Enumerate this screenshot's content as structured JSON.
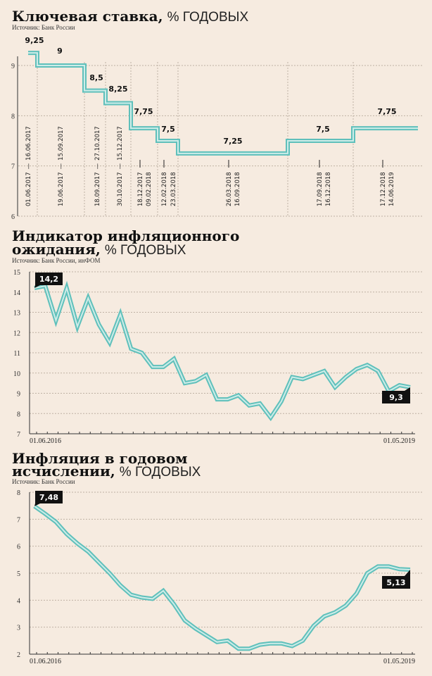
{
  "colors": {
    "background": "#f6ebe0",
    "line_outer": "#5fc0bb",
    "line_inner": "#cdece8",
    "label_box": "#111111"
  },
  "chart_data": [
    {
      "type": "line",
      "step": true,
      "title_bold": "Ключевая ставка,",
      "title_unit": "% ГОДОВЫХ",
      "source": "Источник: Банк России",
      "ylim": [
        6,
        9.5
      ],
      "yticks": [
        "9",
        "8",
        "7",
        "6"
      ],
      "grid": true,
      "periods": [
        {
          "start": "01.06.2017",
          "end": "16.06.2017",
          "value": 9.25,
          "label": "9,25"
        },
        {
          "start": "19.06.2017",
          "end": "15.09.2017",
          "value": 9.0,
          "label": "9"
        },
        {
          "start": "18.09.2017",
          "end": "27.10.2017",
          "value": 8.5,
          "label": "8,5"
        },
        {
          "start": "30.10.2017",
          "end": "15.12.2017",
          "value": 8.25,
          "label": "8,25"
        },
        {
          "start": "18.12.2017",
          "end": "09.02.2018",
          "value": 7.75,
          "label": "7,75"
        },
        {
          "start": "12.02.2018",
          "end": "23.03.2018",
          "value": 7.5,
          "label": "7,5"
        },
        {
          "start": "26.03.2018",
          "end": "16.09.2018",
          "value": 7.25,
          "label": "7,25"
        },
        {
          "start": "17.09.2018",
          "end": "16.12.2018",
          "value": 7.5,
          "label": "7,5"
        },
        {
          "start": "17.12.2018",
          "end": "14.06.2019",
          "value": 7.75,
          "label": "7,75"
        }
      ]
    },
    {
      "type": "line",
      "title_bold": [
        "Индикатор инфляционного",
        "ожидания,"
      ],
      "title_unit": "% ГОДОВЫХ",
      "source": "Источник: Банк России, инФОМ",
      "ylim": [
        7,
        15
      ],
      "yticks": [
        "15",
        "14",
        "13",
        "12",
        "11",
        "10",
        "9",
        "8",
        "7"
      ],
      "grid": true,
      "x_start_label": "01.06.2016",
      "x_end_label": "01.05.2019",
      "first_label": "14,2",
      "last_label": "9,3",
      "values": [
        14.2,
        14.3,
        12.6,
        14.2,
        12.3,
        13.7,
        12.4,
        11.5,
        12.9,
        11.2,
        11.0,
        10.3,
        10.3,
        10.7,
        9.5,
        9.6,
        9.9,
        8.7,
        8.7,
        8.9,
        8.4,
        8.5,
        7.8,
        8.6,
        9.8,
        9.7,
        9.9,
        10.1,
        9.3,
        9.8,
        10.2,
        10.4,
        10.1,
        9.1,
        9.4,
        9.3
      ]
    },
    {
      "type": "line",
      "title_bold": [
        "Инфляция в годовом",
        "исчислении,"
      ],
      "title_unit": "% ГОДОВЫХ",
      "source": "Источник: Банк России",
      "ylim": [
        2,
        8
      ],
      "yticks": [
        "8",
        "7",
        "6",
        "5",
        "4",
        "3",
        "2"
      ],
      "grid": true,
      "x_start_label": "01.06.2016",
      "x_end_label": "01.05.2019",
      "first_label": "7,48",
      "last_label": "5,13",
      "values": [
        7.48,
        7.2,
        6.9,
        6.45,
        6.1,
        5.8,
        5.4,
        5.0,
        4.55,
        4.2,
        4.1,
        4.05,
        4.35,
        3.85,
        3.25,
        2.95,
        2.7,
        2.45,
        2.5,
        2.2,
        2.2,
        2.35,
        2.4,
        2.4,
        2.3,
        2.5,
        3.05,
        3.4,
        3.55,
        3.8,
        4.25,
        5.0,
        5.25,
        5.25,
        5.15,
        5.13
      ]
    }
  ]
}
